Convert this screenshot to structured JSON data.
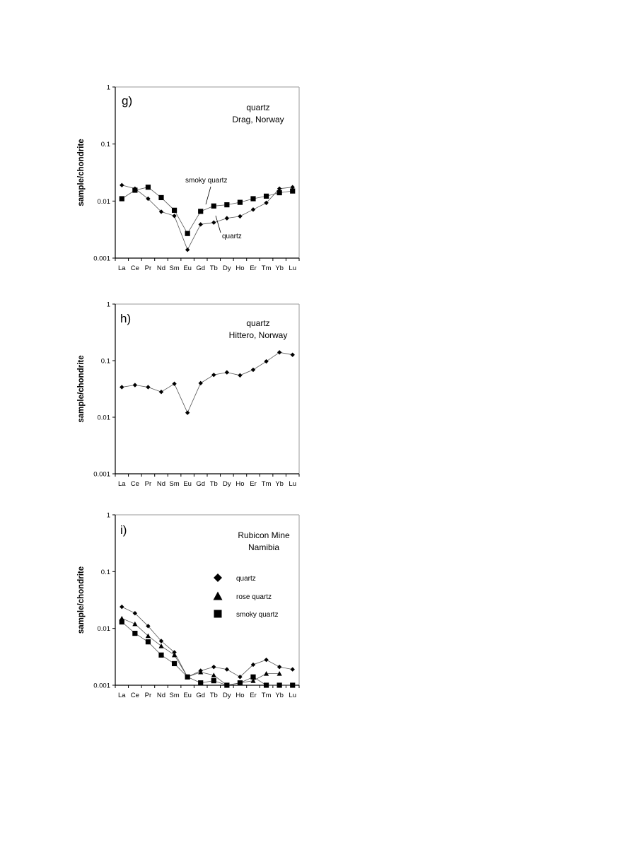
{
  "chart_data": [
    {
      "type": "line",
      "panel_label": "g)",
      "title_lines": [
        "quartz",
        "Drag, Norway"
      ],
      "ylabel": "sample/chondrite",
      "xlabel": "",
      "yscale": "log",
      "ylim": [
        0.001,
        1
      ],
      "yticks": [
        "1",
        "0.1",
        "0.01",
        "0.001"
      ],
      "categories": [
        "La",
        "Ce",
        "Pr",
        "Nd",
        "Sm",
        "Eu",
        "Gd",
        "Tb",
        "Dy",
        "Ho",
        "Er",
        "Tm",
        "Yb",
        "Lu"
      ],
      "grid": false,
      "series": [
        {
          "name": "quartz",
          "marker": "diamond",
          "values": [
            0.019,
            0.0165,
            0.011,
            0.0065,
            0.0055,
            0.0014,
            0.0039,
            0.0042,
            0.005,
            0.0054,
            0.0071,
            0.0093,
            0.0165,
            0.0175
          ]
        },
        {
          "name": "smoky quartz",
          "marker": "square",
          "values": [
            0.011,
            0.0155,
            0.0175,
            0.0115,
            0.0069,
            0.0027,
            0.0066,
            0.0082,
            0.0086,
            0.0095,
            0.011,
            0.0122,
            0.014,
            0.015
          ]
        }
      ],
      "annotations": [
        {
          "text": "smoky quartz",
          "target_series": 1,
          "target_index": 7
        },
        {
          "text": "quartz",
          "target_series": 0,
          "target_index": 7
        }
      ]
    },
    {
      "type": "line",
      "panel_label": "h)",
      "title_lines": [
        "quartz",
        "Hittero, Norway"
      ],
      "ylabel": "sample/chondrite",
      "xlabel": "",
      "yscale": "log",
      "ylim": [
        0.001,
        1
      ],
      "yticks": [
        "1",
        "0.1",
        "0.01",
        "0.001"
      ],
      "categories": [
        "La",
        "Ce",
        "Pr",
        "Nd",
        "Sm",
        "Eu",
        "Gd",
        "Tb",
        "Dy",
        "Ho",
        "Er",
        "Tm",
        "Yb",
        "Lu"
      ],
      "grid": false,
      "series": [
        {
          "name": "quartz",
          "marker": "diamond",
          "values": [
            0.034,
            0.037,
            0.034,
            0.028,
            0.039,
            0.012,
            0.04,
            0.056,
            0.062,
            0.055,
            0.069,
            0.097,
            0.14,
            0.127
          ]
        }
      ]
    },
    {
      "type": "line",
      "panel_label": "i)",
      "title_lines": [
        "Rubicon Mine",
        "Namibia"
      ],
      "ylabel": "sample/chondrite",
      "xlabel": "",
      "yscale": "log",
      "ylim": [
        0.001,
        1
      ],
      "yticks": [
        "1",
        "0.1",
        "0.01",
        "0.001"
      ],
      "categories": [
        "La",
        "Ce",
        "Pr",
        "Nd",
        "Sm",
        "Eu",
        "Gd",
        "Tb",
        "Dy",
        "Ho",
        "Er",
        "Tm",
        "Yb",
        "Lu"
      ],
      "grid": false,
      "legend": "upper-right",
      "series": [
        {
          "name": "quartz",
          "marker": "diamond",
          "values": [
            0.024,
            0.0185,
            0.011,
            0.006,
            0.0038,
            0.0014,
            0.0018,
            0.0021,
            0.0019,
            0.0014,
            0.0023,
            0.0028,
            0.0021,
            0.0019
          ]
        },
        {
          "name": "rose quartz",
          "marker": "triangle",
          "values": [
            0.015,
            0.012,
            0.0074,
            0.0049,
            0.0034,
            0.0014,
            0.0017,
            0.0015,
            0.001,
            0.0011,
            0.0012,
            0.0016,
            0.0016,
            null
          ]
        },
        {
          "name": "smoky quartz",
          "marker": "square",
          "values": [
            0.013,
            0.0082,
            0.0058,
            0.0034,
            0.0024,
            0.0014,
            0.0011,
            0.0012,
            0.001,
            0.0011,
            0.0014,
            0.001,
            0.001,
            0.001
          ]
        }
      ]
    }
  ]
}
